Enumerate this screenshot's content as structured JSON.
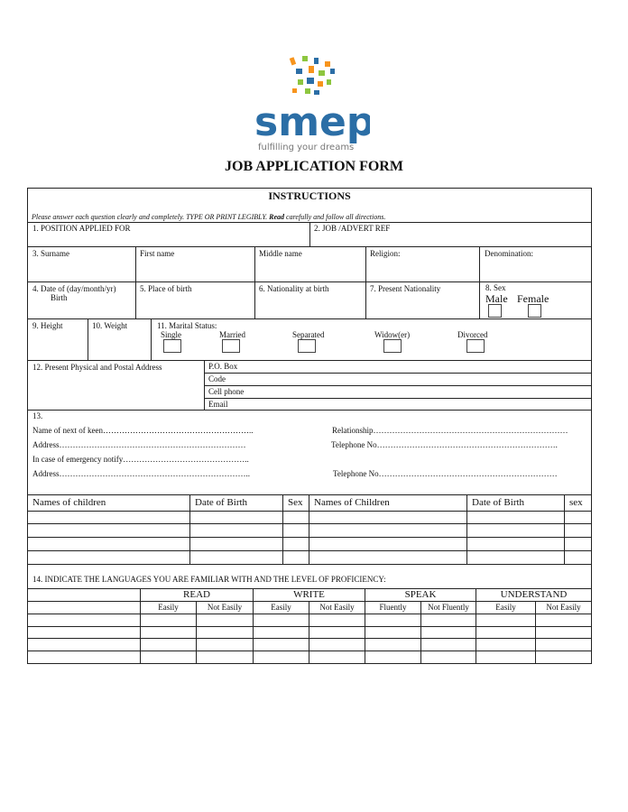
{
  "logo": {
    "wordmark": "smep",
    "tagline": "fulfilling your dreams",
    "colors": {
      "blue": "#2b6ea6",
      "green": "#8dc63f",
      "orange": "#f7941d",
      "gray": "#777777"
    }
  },
  "title": "JOB APPLICATION FORM",
  "instructions": {
    "heading": "INSTRUCTIONS",
    "text_a": "Please answer each question clearly and completely.  TYPE OR PRINT LEGIBLY.  ",
    "text_bold": "Read",
    "text_b": " carefully and follow all directions."
  },
  "fields": {
    "position": "1.     POSITION APPLIED FOR",
    "advert": "2.      JOB /ADVERT REF",
    "surname": "3.      Surname",
    "first_name": "First name",
    "middle_name": "Middle name",
    "religion": "Religion:",
    "denomination": "Denomination:",
    "dob": "4.      Date of (day/month/yr)",
    "dob2": "Birth",
    "place_birth": "5.      Place of birth",
    "nat_birth": "6.      Nationality at birth",
    "present_nat": "7.      Present Nationality",
    "sex": "8.      Sex",
    "male": "Male",
    "female": "Female",
    "height": "9.      Height",
    "weight": "10.    Weight",
    "marital": "11.    Marital Status:",
    "single": "Single",
    "married": "Married",
    "separated": "Separated",
    "widow": "Widow(er)",
    "divorced": "Divorced",
    "address": "12.    Present Physical and Postal Address",
    "pobox": "P.O. Box",
    "code": "Code",
    "cell": "Cell phone",
    "email": "Email",
    "s13": "13.",
    "next_kin": "Name of next of keen………………………………………………..",
    "relationship": "Relationship………………………………………………………………",
    "kin_address": "Address……………………………………………………………",
    "kin_tel": "Telephone No………………………………………………………….",
    "emergency": "In case of emergency notify………………………………………..",
    "em_address": "Address……………………………………………………………..",
    "em_tel": "Telephone No…………………………………………………………"
  },
  "children": {
    "headers": [
      "Names of children",
      "Date of Birth",
      "Sex",
      "Names of Children",
      "Date of Birth",
      "sex"
    ],
    "rows": 4
  },
  "languages": {
    "heading": "14.   INDICATE THE LANGUAGES YOU ARE FAMILIAR WITH AND THE LEVEL OF PROFICIENCY:",
    "groups": [
      "READ",
      "WRITE",
      "SPEAK",
      "UNDERSTAND"
    ],
    "sub": [
      "Easily",
      "Not Easily",
      "Easily",
      "Not Easily",
      "Fluently",
      "Not Fluently",
      "Easily",
      "Not Easily"
    ],
    "rows": 4
  }
}
